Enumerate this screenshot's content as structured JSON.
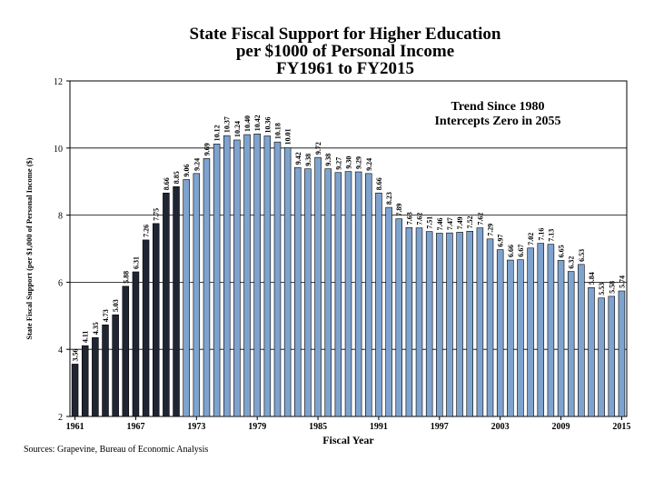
{
  "chart_data": {
    "type": "bar",
    "title": [
      "State Fiscal Support for Higher Education",
      "per $1000 of Personal Income",
      "FY1961 to FY2015"
    ],
    "xlabel": "Fiscal Year",
    "ylabel": "State Fiscal Support (per $1,000 of Personal Income ($)",
    "ylim": [
      2,
      12
    ],
    "yticks": [
      2,
      4,
      6,
      8,
      10,
      12
    ],
    "xtick_labels": [
      "1961",
      "1967",
      "1973",
      "1979",
      "1985",
      "1991",
      "1997",
      "2003",
      "2009",
      "2015"
    ],
    "grid": "horizontal",
    "annotation": [
      "Trend Since 1980",
      "Intercepts Zero in 2055"
    ],
    "categories": [
      "1961",
      "1962",
      "1963",
      "1964",
      "1965",
      "1966",
      "1967",
      "1968",
      "1969",
      "1970",
      "1971",
      "1972",
      "1973",
      "1974",
      "1975",
      "1976",
      "1977",
      "1978",
      "1979",
      "1980",
      "1981",
      "1982",
      "1983",
      "1984",
      "1985",
      "1986",
      "1987",
      "1988",
      "1989",
      "1990",
      "1991",
      "1992",
      "1993",
      "1994",
      "1995",
      "1996",
      "1997",
      "1998",
      "1999",
      "2000",
      "2001",
      "2002",
      "2003",
      "2004",
      "2005",
      "2006",
      "2007",
      "2008",
      "2009",
      "2010",
      "2011",
      "2012",
      "2013",
      "2014",
      "2015"
    ],
    "values": [
      3.56,
      4.11,
      4.35,
      4.73,
      5.03,
      5.88,
      6.31,
      7.26,
      7.75,
      8.66,
      8.85,
      9.06,
      9.24,
      9.69,
      10.12,
      10.37,
      10.24,
      10.4,
      10.42,
      10.36,
      10.18,
      10.01,
      9.42,
      9.38,
      9.72,
      9.38,
      9.27,
      9.3,
      9.29,
      9.24,
      8.66,
      8.23,
      7.89,
      7.63,
      7.62,
      7.51,
      7.46,
      7.47,
      7.49,
      7.52,
      7.62,
      7.29,
      6.97,
      6.66,
      6.67,
      7.02,
      7.16,
      7.13,
      6.65,
      6.32,
      6.53,
      5.84,
      5.53,
      5.58,
      5.74
    ],
    "data_labels": [
      "3.56",
      "4.11",
      "4.35",
      "4.73",
      "5.03",
      "5.88",
      "6.31",
      "7.26",
      "7.75",
      "8.66",
      "8.85",
      "9.06",
      "9.24",
      "9.69",
      "10.12",
      "10.37",
      "10.24",
      "10.40",
      "10.42",
      "10.36",
      "10.18",
      "10.01",
      "9.42",
      "9.38",
      "9.72",
      "9.38",
      "9.27",
      "9.30",
      "9.29",
      "9.24",
      "8.66",
      "8.23",
      "7.89",
      "7.63",
      "7.62",
      "7.51",
      "7.46",
      "7.47",
      "7.49",
      "7.52",
      "7.62",
      "7.29",
      "6.97",
      "6.66",
      "6.67",
      "7.02",
      "7.16",
      "7.13",
      "6.65",
      "6.32",
      "6.53",
      "5.84",
      "5.53",
      "5.58",
      "5.74"
    ],
    "bar_colors": [
      "#1f2533",
      "#7fa3cf"
    ],
    "source": "Sources: Grapevine, Bureau of Economic Analysis"
  }
}
